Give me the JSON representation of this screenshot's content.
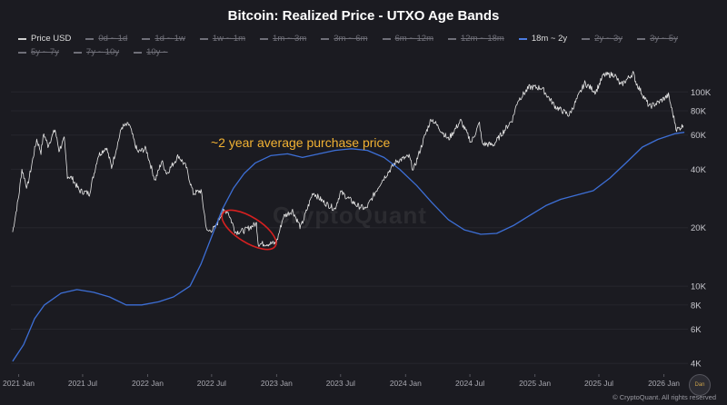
{
  "chart_data": {
    "type": "line",
    "title": "Bitcoin: Realized Price - UTXO Age Bands",
    "y_scale": "log",
    "ylim": [
      3600,
      140000
    ],
    "xlim": [
      "2020-12-10",
      "2026-03-10"
    ],
    "y_ticks": [
      {
        "value": 4000,
        "label": "4K"
      },
      {
        "value": 6000,
        "label": "6K"
      },
      {
        "value": 8000,
        "label": "8K"
      },
      {
        "value": 10000,
        "label": "10K"
      },
      {
        "value": 20000,
        "label": "20K"
      },
      {
        "value": 40000,
        "label": "40K"
      },
      {
        "value": 60000,
        "label": "60K"
      },
      {
        "value": 80000,
        "label": "80K"
      },
      {
        "value": 100000,
        "label": "100K"
      }
    ],
    "x_ticks": [
      {
        "date": "2021-01-01",
        "label": "2021 Jan"
      },
      {
        "date": "2021-07-01",
        "label": "2021 Jul"
      },
      {
        "date": "2022-01-01",
        "label": "2022 Jan"
      },
      {
        "date": "2022-07-01",
        "label": "2022 Jul"
      },
      {
        "date": "2023-01-01",
        "label": "2023 Jan"
      },
      {
        "date": "2023-07-01",
        "label": "2023 Jul"
      },
      {
        "date": "2024-01-01",
        "label": "2024 Jan"
      },
      {
        "date": "2024-07-01",
        "label": "2024 Jul"
      },
      {
        "date": "2025-01-01",
        "label": "2025 Jan"
      },
      {
        "date": "2025-07-01",
        "label": "2025 Jul"
      },
      {
        "date": "2026-01-01",
        "label": "2026 Jan"
      }
    ],
    "legend": [
      {
        "name": "Price USD",
        "visible": true
      },
      {
        "name": "0d ~ 1d",
        "visible": false
      },
      {
        "name": "1d ~ 1w",
        "visible": false
      },
      {
        "name": "1w ~ 1m",
        "visible": false
      },
      {
        "name": "1m ~ 3m",
        "visible": false
      },
      {
        "name": "3m ~ 6m",
        "visible": false
      },
      {
        "name": "6m ~ 12m",
        "visible": false
      },
      {
        "name": "12m ~ 18m",
        "visible": false
      },
      {
        "name": "18m ~ 2y",
        "visible": true
      },
      {
        "name": "2y ~ 3y",
        "visible": false
      },
      {
        "name": "3y ~ 5y",
        "visible": false
      },
      {
        "name": "5y ~ 7y",
        "visible": false
      },
      {
        "name": "7y ~ 10y",
        "visible": false
      },
      {
        "name": "10y ~",
        "visible": false
      }
    ],
    "series": [
      {
        "name": "Price USD",
        "color": "#e6e6e6",
        "points": [
          [
            "2020-12-15",
            19000
          ],
          [
            "2021-01-01",
            29000
          ],
          [
            "2021-01-10",
            40000
          ],
          [
            "2021-01-25",
            32000
          ],
          [
            "2021-02-10",
            45000
          ],
          [
            "2021-02-21",
            57000
          ],
          [
            "2021-03-05",
            49000
          ],
          [
            "2021-03-13",
            61000
          ],
          [
            "2021-03-25",
            53000
          ],
          [
            "2021-04-14",
            64000
          ],
          [
            "2021-04-25",
            50000
          ],
          [
            "2021-05-10",
            57000
          ],
          [
            "2021-05-19",
            37000
          ],
          [
            "2021-06-01",
            36000
          ],
          [
            "2021-06-22",
            31000
          ],
          [
            "2021-07-20",
            30000
          ],
          [
            "2021-08-14",
            47000
          ],
          [
            "2021-09-06",
            52000
          ],
          [
            "2021-09-21",
            41000
          ],
          [
            "2021-10-20",
            66000
          ],
          [
            "2021-11-10",
            68000
          ],
          [
            "2021-11-26",
            54000
          ],
          [
            "2021-12-04",
            49000
          ],
          [
            "2021-12-27",
            51000
          ],
          [
            "2022-01-22",
            35000
          ],
          [
            "2022-02-10",
            44000
          ],
          [
            "2022-02-24",
            38000
          ],
          [
            "2022-03-29",
            47000
          ],
          [
            "2022-04-20",
            41000
          ],
          [
            "2022-05-10",
            30000
          ],
          [
            "2022-06-01",
            31000
          ],
          [
            "2022-06-18",
            19000
          ],
          [
            "2022-07-12",
            20000
          ],
          [
            "2022-07-30",
            24000
          ],
          [
            "2022-08-15",
            24500
          ],
          [
            "2022-09-07",
            19000
          ],
          [
            "2022-10-01",
            19300
          ],
          [
            "2022-11-05",
            21000
          ],
          [
            "2022-11-10",
            16500
          ],
          [
            "2022-12-31",
            16600
          ],
          [
            "2023-01-20",
            22800
          ],
          [
            "2023-02-15",
            24500
          ],
          [
            "2023-03-10",
            20000
          ],
          [
            "2023-04-14",
            30400
          ],
          [
            "2023-05-15",
            27000
          ],
          [
            "2023-06-15",
            25000
          ],
          [
            "2023-07-01",
            30500
          ],
          [
            "2023-08-17",
            26000
          ],
          [
            "2023-09-11",
            25000
          ],
          [
            "2023-10-24",
            34500
          ],
          [
            "2023-12-06",
            44000
          ],
          [
            "2024-01-11",
            46500
          ],
          [
            "2024-01-23",
            39500
          ],
          [
            "2024-02-28",
            62000
          ],
          [
            "2024-03-14",
            73000
          ],
          [
            "2024-05-01",
            57000
          ],
          [
            "2024-06-05",
            71000
          ],
          [
            "2024-07-05",
            55000
          ],
          [
            "2024-07-28",
            69000
          ],
          [
            "2024-08-05",
            54000
          ],
          [
            "2024-09-06",
            53500
          ],
          [
            "2024-10-29",
            72000
          ],
          [
            "2024-11-13",
            90000
          ],
          [
            "2024-12-17",
            106000
          ],
          [
            "2025-01-20",
            105000
          ],
          [
            "2025-02-28",
            84000
          ],
          [
            "2025-04-08",
            76000
          ],
          [
            "2025-05-22",
            111000
          ],
          [
            "2025-06-22",
            100000
          ],
          [
            "2025-07-14",
            122000
          ],
          [
            "2025-08-14",
            123000
          ],
          [
            "2025-09-01",
            108000
          ],
          [
            "2025-10-06",
            125000
          ],
          [
            "2025-10-15",
            111000
          ],
          [
            "2025-11-21",
            84000
          ],
          [
            "2025-12-15",
            88000
          ],
          [
            "2026-01-14",
            96000
          ],
          [
            "2026-02-06",
            64000
          ],
          [
            "2026-02-25",
            67000
          ]
        ]
      },
      {
        "name": "18m ~ 2y",
        "color": "#3d6fd6",
        "points": [
          [
            "2020-12-15",
            4100
          ],
          [
            "2021-01-15",
            5000
          ],
          [
            "2021-02-15",
            6800
          ],
          [
            "2021-03-15",
            8000
          ],
          [
            "2021-05-01",
            9200
          ],
          [
            "2021-06-15",
            9600
          ],
          [
            "2021-08-01",
            9300
          ],
          [
            "2021-09-15",
            8800
          ],
          [
            "2021-11-01",
            8000
          ],
          [
            "2021-12-15",
            8000
          ],
          [
            "2022-02-01",
            8300
          ],
          [
            "2022-03-15",
            8800
          ],
          [
            "2022-05-01",
            10000
          ],
          [
            "2022-06-01",
            13000
          ],
          [
            "2022-07-01",
            18000
          ],
          [
            "2022-08-01",
            25000
          ],
          [
            "2022-09-01",
            32000
          ],
          [
            "2022-10-01",
            38000
          ],
          [
            "2022-11-01",
            43000
          ],
          [
            "2022-12-15",
            47000
          ],
          [
            "2023-02-01",
            48000
          ],
          [
            "2023-03-15",
            46000
          ],
          [
            "2023-05-01",
            48000
          ],
          [
            "2023-06-15",
            50000
          ],
          [
            "2023-08-01",
            51000
          ],
          [
            "2023-09-15",
            50000
          ],
          [
            "2023-11-01",
            46000
          ],
          [
            "2023-12-15",
            40000
          ],
          [
            "2024-02-01",
            33000
          ],
          [
            "2024-03-15",
            27000
          ],
          [
            "2024-05-01",
            22000
          ],
          [
            "2024-06-15",
            19500
          ],
          [
            "2024-08-01",
            18500
          ],
          [
            "2024-09-15",
            18700
          ],
          [
            "2024-11-01",
            20500
          ],
          [
            "2024-12-15",
            23000
          ],
          [
            "2025-02-01",
            26000
          ],
          [
            "2025-03-15",
            28000
          ],
          [
            "2025-05-01",
            29500
          ],
          [
            "2025-06-15",
            31000
          ],
          [
            "2025-08-01",
            36000
          ],
          [
            "2025-09-15",
            43000
          ],
          [
            "2025-11-01",
            52000
          ],
          [
            "2025-12-15",
            57000
          ],
          [
            "2026-02-01",
            61000
          ],
          [
            "2026-02-28",
            62000
          ]
        ]
      }
    ],
    "annotations": [
      {
        "text": "~2 year average purchase price",
        "color": "#f2b233"
      },
      {
        "shape": "ellipse",
        "color": "#d62020",
        "center_date": "2022-10-15",
        "center_value": 19500
      }
    ]
  },
  "watermark": "CryptoQuant",
  "footer": "© CryptoQuant. All rights reserved",
  "logo_text": "Dan"
}
